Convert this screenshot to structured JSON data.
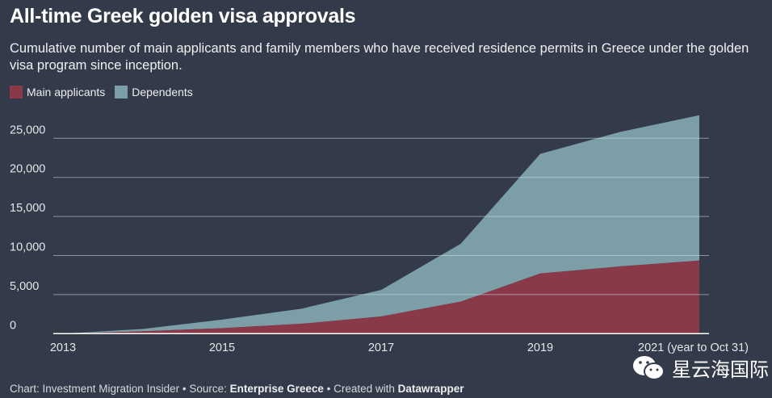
{
  "title": "All-time Greek golden visa approvals",
  "subtitle": "Cumulative number of main applicants and family members who have received residence permits in Greece under the golden visa program since inception.",
  "colors": {
    "main": "#8a3949",
    "dependents": "#7b9ea7",
    "background": "#333a4a"
  },
  "footer": {
    "prefix": "Chart: Investment Migration Insider • Source: ",
    "source": "Enterprise Greece",
    "middle": " • Created with ",
    "tool": "Datawrapper"
  },
  "watermark": "星云海国际",
  "chart_data": {
    "type": "area",
    "stacked": true,
    "x": [
      2013,
      2014,
      2015,
      2016,
      2017,
      2018,
      2019,
      2020,
      2021
    ],
    "xticks": [
      2013,
      2015,
      2017,
      2019,
      2021
    ],
    "xtick_labels": [
      "2013",
      "2015",
      "2017",
      "2019",
      "2021 (year to Oct 31)"
    ],
    "yticks": [
      0,
      5000,
      10000,
      15000,
      20000,
      25000
    ],
    "ytick_labels": [
      "0",
      "5,000",
      "10,000",
      "15,000",
      "20,000",
      "25,000"
    ],
    "ylim": [
      0,
      28000
    ],
    "grid": true,
    "legend": "top-left",
    "series": [
      {
        "name": "Main applicants",
        "values": [
          0,
          300,
          700,
          1270,
          2200,
          4100,
          7700,
          8600,
          9360
        ]
      },
      {
        "name": "Dependents",
        "values": [
          0,
          300,
          1100,
          1930,
          3400,
          7400,
          15300,
          17200,
          18590
        ]
      }
    ]
  }
}
